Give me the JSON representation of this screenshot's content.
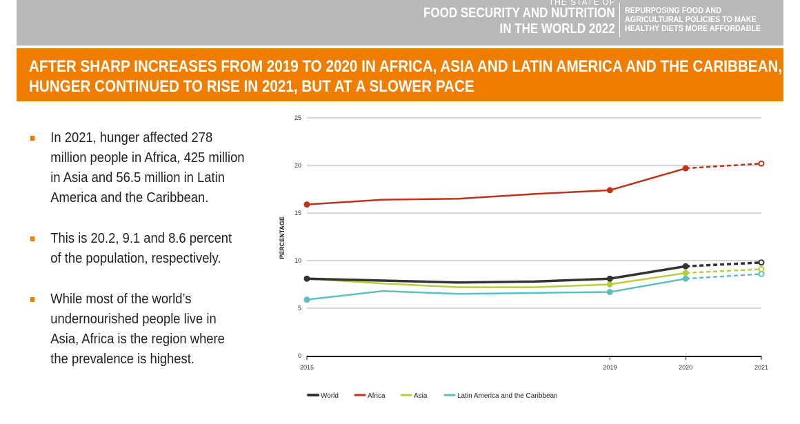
{
  "header": {
    "kicker": "THE STATE OF",
    "title_line1": "FOOD SECURITY AND NUTRITION",
    "title_line2": "IN THE WORLD 2022",
    "tagline": [
      "REPURPOSING FOOD AND",
      "AGRICULTURAL POLICIES TO MAKE",
      "HEALTHY DIETS MORE AFFORDABLE"
    ]
  },
  "banner": {
    "line1": "AFTER SHARP INCREASES FROM 2019 TO 2020 IN AFRICA, ASIA AND LATIN AMERICA AND THE CARIBBEAN,",
    "line2": "HUNGER CONTINUED TO RISE IN 2021, BUT AT A SLOWER PACE"
  },
  "bullets": [
    "In 2021, hunger affected 278 million people in Africa, 425 million in Asia and 56.5 million in Latin America and the Caribbean.",
    "This is 20.2, 9.1 and 8.6 percent of the population, respectively.",
    "While most of the world’s undernourished people live in Asia, Africa is the region where the prevalence is highest."
  ],
  "colors": {
    "accent": "#ef7d00",
    "header_bg": "#b9b9b9"
  },
  "chart_data": {
    "type": "line",
    "ylabel": "PERCENTAGE",
    "ylim": [
      0,
      25
    ],
    "yticks": [
      "0",
      "5",
      "10",
      "15",
      "20",
      "25"
    ],
    "x": [
      2015,
      2016,
      2017,
      2018,
      2019,
      2020,
      2021
    ],
    "xticks": [
      "2015",
      "2019",
      "2020",
      "2021"
    ],
    "grid": true,
    "legend": "bottom",
    "projected_from": 2020,
    "series": [
      {
        "name": "World",
        "color": "#333333",
        "values": [
          8.1,
          7.9,
          7.7,
          7.8,
          8.1,
          9.4,
          9.8
        ]
      },
      {
        "name": "Africa",
        "color": "#c0321a",
        "values": [
          15.9,
          16.4,
          16.5,
          17.0,
          17.4,
          19.7,
          20.2
        ]
      },
      {
        "name": "Asia",
        "color": "#b5cf3c",
        "values": [
          8.1,
          7.6,
          7.2,
          7.2,
          7.5,
          8.7,
          9.1
        ]
      },
      {
        "name": "Latin America and the Caribbean",
        "color": "#5cbfc1",
        "values": [
          5.9,
          6.8,
          6.5,
          6.6,
          6.7,
          8.1,
          8.6
        ]
      }
    ]
  }
}
